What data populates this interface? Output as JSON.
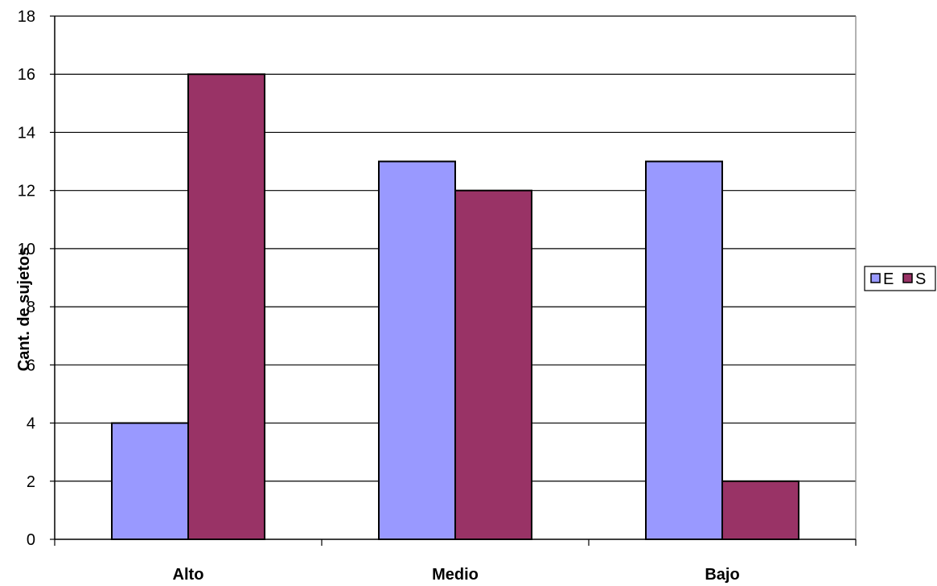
{
  "chart_data": {
    "type": "bar",
    "categories": [
      "Alto",
      "Medio",
      "Bajo"
    ],
    "series": [
      {
        "name": "E",
        "values": [
          4,
          13,
          13
        ],
        "color": "#9999FF"
      },
      {
        "name": "S",
        "values": [
          16,
          12,
          2
        ],
        "color": "#993366"
      }
    ],
    "title": "",
    "xlabel": "",
    "ylabel": "Cant. de sujetos",
    "ylim": [
      0,
      18
    ],
    "yticks": [
      0,
      2,
      4,
      6,
      8,
      10,
      12,
      14,
      16,
      18
    ],
    "grid": true,
    "legend_position": "right"
  }
}
